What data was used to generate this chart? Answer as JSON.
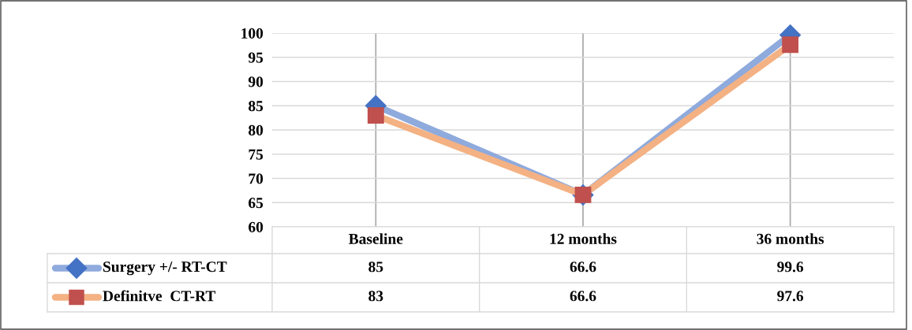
{
  "chart_data": {
    "type": "line",
    "categories": [
      "Baseline",
      "12 months",
      "36 months"
    ],
    "series": [
      {
        "name": "Surgery +/- RT-CT",
        "color": "#8faadc",
        "colors": [
          "#4472c4",
          "#4472c4",
          "#4472c4"
        ],
        "marker": "diamond",
        "values": [
          85,
          66.6,
          99.6
        ]
      },
      {
        "name": "Definitve  CT-RT",
        "color": "#f4b183",
        "colors": [
          "#c0504d",
          "#c0504d",
          "#c0504d"
        ],
        "marker": "square",
        "values": [
          83,
          66.6,
          97.6
        ]
      }
    ],
    "ylim": [
      60,
      100
    ],
    "yticks": [
      60,
      65,
      70,
      75,
      80,
      85,
      90,
      95,
      100
    ],
    "grid": true,
    "data_labels": true,
    "legend": "bottom"
  }
}
